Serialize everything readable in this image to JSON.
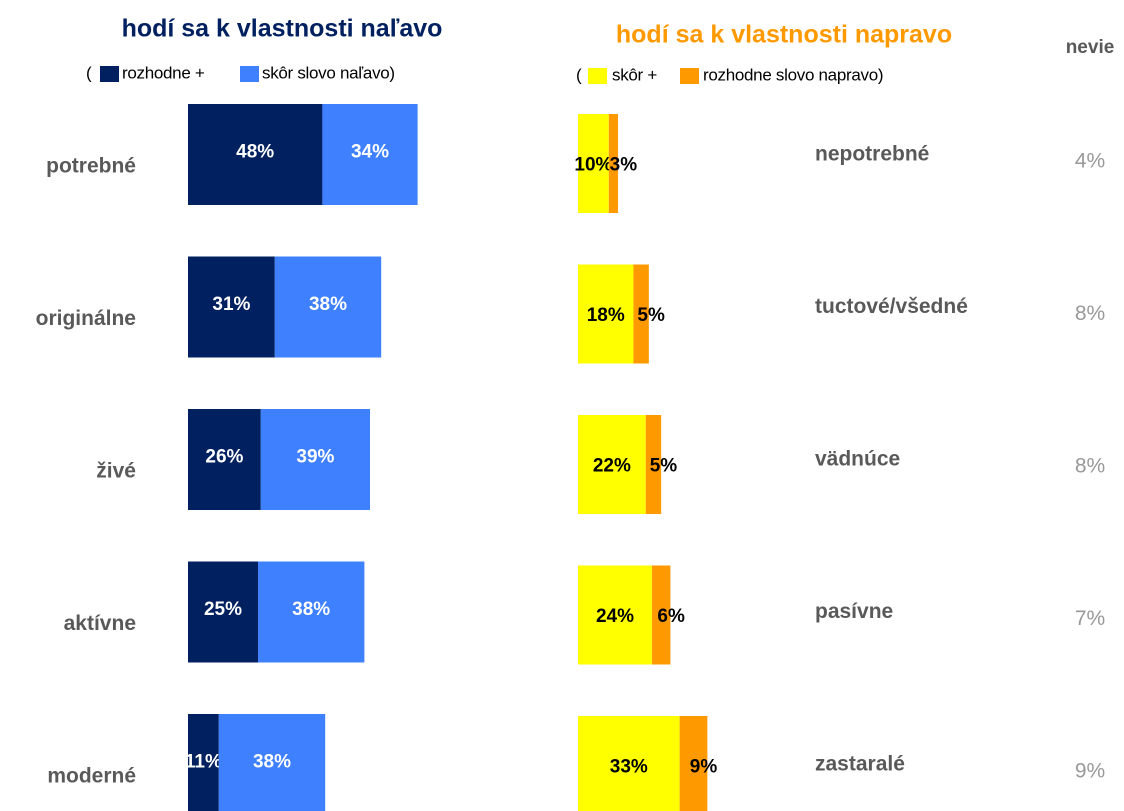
{
  "chart_data": {
    "type": "bar",
    "stacked": true,
    "orientation": "horizontal",
    "categories": [
      "potrebné",
      "originálne",
      "živé",
      "aktívne",
      "moderné"
    ],
    "right_categories": [
      "nepotrebné",
      "tuctové/všedné",
      "vädnúce",
      "pasívne",
      "zastaralé"
    ],
    "left": {
      "title": "hodí sa k vlastnosti naľavo",
      "legend_prefix": "(",
      "series": [
        {
          "name": "rozhodne +",
          "color": "#002060",
          "values": [
            48,
            31,
            26,
            25,
            11
          ],
          "value_labels": [
            "48%",
            "31%",
            "26%",
            "25%",
            "11%"
          ]
        },
        {
          "name": "skôr slovo naľavo)",
          "color": "#3f80ff",
          "values": [
            34,
            38,
            39,
            38,
            38
          ],
          "value_labels": [
            "34%",
            "38%",
            "39%",
            "38%",
            "38%"
          ]
        }
      ]
    },
    "right": {
      "title": "hodí sa k vlastnosti napravo",
      "legend_prefix": "(",
      "series": [
        {
          "name": "skôr +",
          "color": "#ffff00",
          "values": [
            10,
            18,
            22,
            24,
            33
          ],
          "value_labels": [
            "10%",
            "18%",
            "22%",
            "24%",
            "33%"
          ]
        },
        {
          "name": "rozhodne slovo napravo)",
          "color": "#ff9900",
          "values": [
            3,
            5,
            5,
            6,
            9
          ],
          "value_labels": [
            "3%",
            "5%",
            "5%",
            "6%",
            "9%"
          ]
        }
      ]
    },
    "dont_know": {
      "title": "nevie",
      "values": [
        4,
        8,
        8,
        7,
        9
      ],
      "value_labels": [
        "4%",
        "8%",
        "8%",
        "7%",
        "9%"
      ]
    }
  }
}
